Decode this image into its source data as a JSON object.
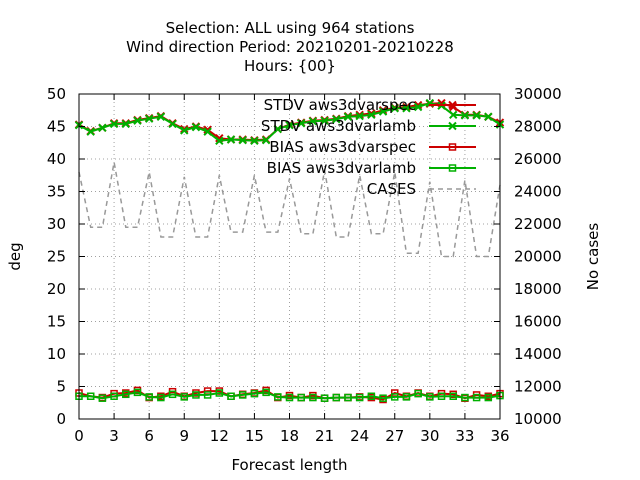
{
  "chart_data": {
    "type": "line",
    "title_lines": [
      "Selection: ALL using   964 stations",
      "Wind direction   Period: 20210201-20210228",
      "Hours: {00}"
    ],
    "xlabel": "Forecast length",
    "ylabel": "deg",
    "y2label": "No cases",
    "xlim": [
      0,
      36
    ],
    "ylim": [
      0,
      50
    ],
    "y2lim": [
      10000,
      30000
    ],
    "x_ticks": [
      0,
      3,
      6,
      9,
      12,
      15,
      18,
      21,
      24,
      27,
      30,
      33,
      36
    ],
    "y_ticks": [
      0,
      5,
      10,
      15,
      20,
      25,
      30,
      35,
      40,
      45,
      50
    ],
    "y2_ticks": [
      10000,
      12000,
      14000,
      16000,
      18000,
      20000,
      22000,
      24000,
      26000,
      28000,
      30000
    ],
    "grid": true,
    "legend_position": "top-right",
    "x": [
      0,
      1,
      2,
      3,
      4,
      5,
      6,
      7,
      8,
      9,
      10,
      11,
      12,
      13,
      14,
      15,
      16,
      17,
      18,
      19,
      20,
      21,
      22,
      23,
      24,
      25,
      26,
      27,
      28,
      29,
      30,
      31,
      32,
      33,
      34,
      35,
      36
    ],
    "series": [
      {
        "name": "STDV aws3dvarspec",
        "color": "#cc0000",
        "marker": "x",
        "axis": "y",
        "values": [
          45.3,
          44.3,
          44.8,
          45.5,
          45.5,
          46.0,
          46.3,
          46.6,
          45.5,
          44.6,
          45.0,
          44.5,
          43.2,
          43.0,
          43.0,
          42.9,
          43.0,
          44.6,
          45.3,
          45.6,
          45.9,
          46.0,
          46.2,
          46.6,
          46.8,
          47.0,
          47.5,
          47.9,
          48.0,
          48.3,
          48.5,
          48.6,
          48.0,
          46.8,
          46.8,
          46.5,
          45.6
        ]
      },
      {
        "name": "STDV aws3dvarlamb",
        "color": "#00b000",
        "marker": "x",
        "axis": "y",
        "values": [
          45.2,
          44.2,
          44.8,
          45.4,
          45.4,
          45.9,
          46.2,
          46.5,
          45.4,
          44.4,
          44.9,
          44.2,
          42.8,
          43.0,
          42.9,
          42.8,
          42.9,
          44.6,
          45.2,
          45.5,
          45.8,
          45.9,
          46.1,
          46.5,
          46.6,
          46.8,
          47.3,
          47.8,
          47.8,
          48.0,
          48.6,
          48.2,
          46.8,
          46.7,
          46.7,
          46.5,
          45.3
        ]
      },
      {
        "name": "BIAS aws3dvarspec",
        "color": "#cc0000",
        "marker": "square",
        "axis": "y",
        "values": [
          4.0,
          3.5,
          3.3,
          3.9,
          4.0,
          4.4,
          3.3,
          3.5,
          4.2,
          3.5,
          4.0,
          4.3,
          4.3,
          3.5,
          3.8,
          4.0,
          4.4,
          3.3,
          3.6,
          3.3,
          3.6,
          3.2,
          3.3,
          3.3,
          3.4,
          3.3,
          3.0,
          4.0,
          3.5,
          4.0,
          3.5,
          3.9,
          3.8,
          3.2,
          3.7,
          3.5,
          3.9
        ]
      },
      {
        "name": "BIAS aws3dvarlamb",
        "color": "#00b000",
        "marker": "square",
        "axis": "y",
        "values": [
          3.5,
          3.5,
          3.2,
          3.5,
          3.8,
          4.1,
          3.4,
          3.3,
          3.8,
          3.4,
          3.7,
          3.7,
          4.0,
          3.5,
          3.7,
          3.9,
          4.1,
          3.4,
          3.3,
          3.3,
          3.3,
          3.2,
          3.3,
          3.3,
          3.3,
          3.5,
          3.2,
          3.4,
          3.4,
          3.9,
          3.4,
          3.5,
          3.5,
          3.3,
          3.3,
          3.3,
          3.6
        ]
      },
      {
        "name": "CASES",
        "color": "#999999",
        "marker": "none",
        "dashed": true,
        "axis": "y2",
        "values": [
          25200,
          21800,
          21800,
          25800,
          21800,
          21800,
          25200,
          21200,
          21200,
          24900,
          21200,
          21200,
          25000,
          21500,
          21500,
          25000,
          21500,
          21500,
          24800,
          21400,
          21400,
          25300,
          21200,
          21200,
          25000,
          21400,
          21400,
          25200,
          20200,
          20200,
          24600,
          20000,
          20000,
          24700,
          20000,
          20000,
          24400
        ]
      }
    ]
  }
}
